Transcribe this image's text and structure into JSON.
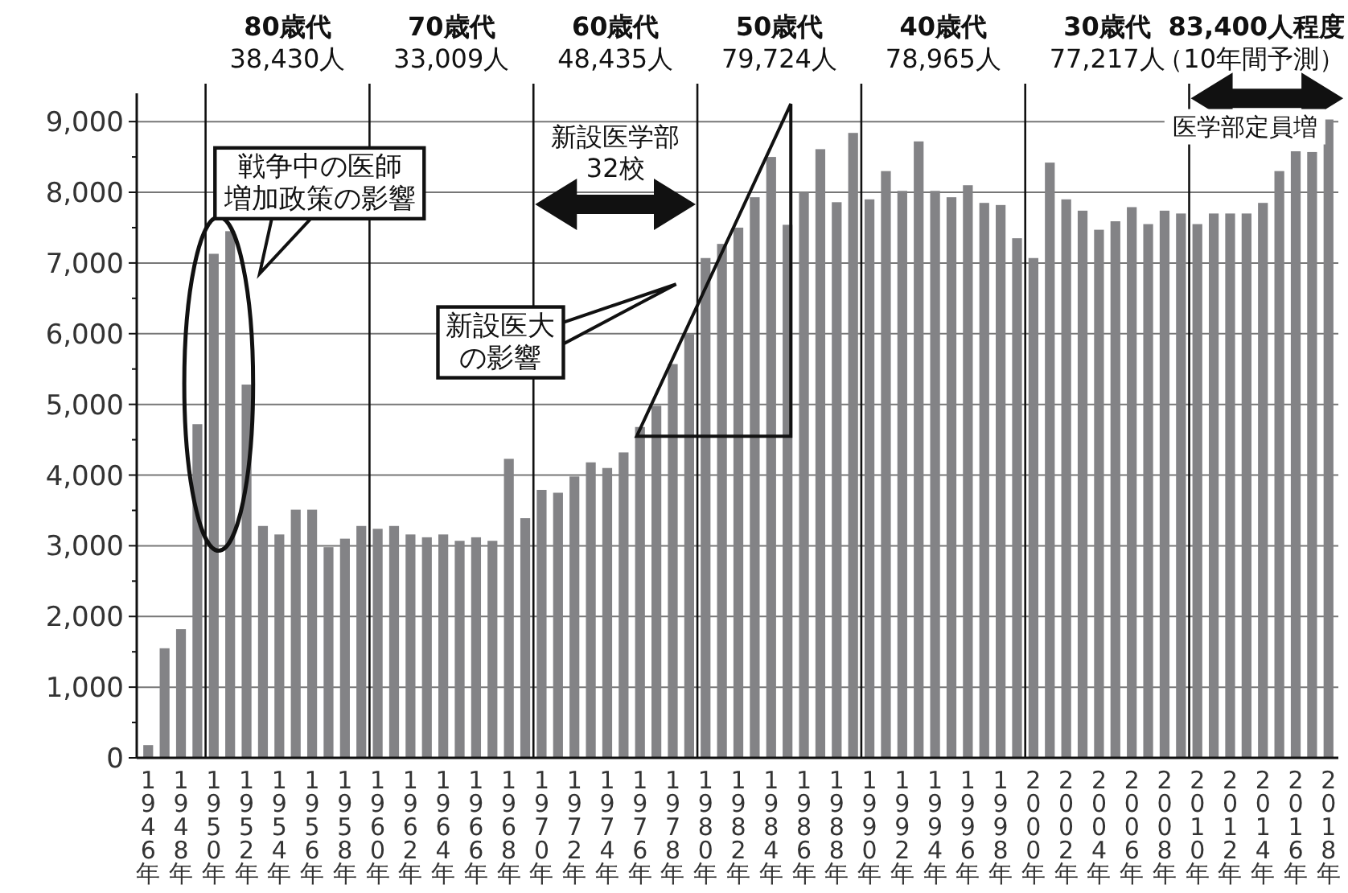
{
  "chart_data": {
    "type": "bar",
    "color": "#838386",
    "grid": "y",
    "x": [
      1946,
      1947,
      1948,
      1949,
      1950,
      1951,
      1952,
      1953,
      1954,
      1955,
      1956,
      1957,
      1958,
      1959,
      1960,
      1961,
      1962,
      1963,
      1964,
      1965,
      1966,
      1967,
      1968,
      1969,
      1970,
      1971,
      1972,
      1973,
      1974,
      1975,
      1976,
      1977,
      1978,
      1979,
      1980,
      1981,
      1982,
      1983,
      1984,
      1985,
      1986,
      1987,
      1988,
      1989,
      1990,
      1991,
      1992,
      1993,
      1994,
      1995,
      1996,
      1997,
      1998,
      1999,
      2000,
      2001,
      2002,
      2003,
      2004,
      2005,
      2006,
      2007,
      2008,
      2009,
      2010,
      2011,
      2012,
      2013,
      2014,
      2015,
      2016,
      2017,
      2018
    ],
    "values": [
      180,
      1550,
      1820,
      4720,
      7130,
      7450,
      5280,
      3280,
      3160,
      3510,
      3510,
      2980,
      3100,
      3280,
      3240,
      3280,
      3160,
      3120,
      3160,
      3070,
      3120,
      3070,
      4230,
      3390,
      3790,
      3750,
      3980,
      4180,
      4100,
      4320,
      4680,
      4980,
      5570,
      6000,
      7070,
      7270,
      7500,
      7930,
      8500,
      7540,
      8000,
      8610,
      7860,
      8840,
      7900,
      8300,
      8020,
      8720,
      8020,
      7930,
      8100,
      7850,
      7820,
      7350,
      7070,
      8420,
      7900,
      7740,
      7470,
      7590,
      7790,
      7550,
      7740,
      7700,
      7550,
      7700,
      7700,
      7700,
      7850,
      8300,
      8580,
      8570,
      9030
    ],
    "xlim": [
      1945.3,
      2018.6
    ],
    "xticks": [
      {
        "value": 1946,
        "label": "1946年"
      },
      {
        "value": 1948,
        "label": "1948年"
      },
      {
        "value": 1950,
        "label": "1950年"
      },
      {
        "value": 1952,
        "label": "1952年"
      },
      {
        "value": 1954,
        "label": "1954年"
      },
      {
        "value": 1956,
        "label": "1956年"
      },
      {
        "value": 1958,
        "label": "1958年"
      },
      {
        "value": 1960,
        "label": "1960年"
      },
      {
        "value": 1962,
        "label": "1962年"
      },
      {
        "value": 1964,
        "label": "1964年"
      },
      {
        "value": 1966,
        "label": "1966年"
      },
      {
        "value": 1968,
        "label": "1968年"
      },
      {
        "value": 1970,
        "label": "1970年"
      },
      {
        "value": 1972,
        "label": "1972年"
      },
      {
        "value": 1974,
        "label": "1974年"
      },
      {
        "value": 1976,
        "label": "1976年"
      },
      {
        "value": 1978,
        "label": "1978年"
      },
      {
        "value": 1980,
        "label": "1980年"
      },
      {
        "value": 1982,
        "label": "1982年"
      },
      {
        "value": 1984,
        "label": "1984年"
      },
      {
        "value": 1986,
        "label": "1986年"
      },
      {
        "value": 1988,
        "label": "1988年"
      },
      {
        "value": 1990,
        "label": "1990年"
      },
      {
        "value": 1992,
        "label": "1992年"
      },
      {
        "value": 1994,
        "label": "1994年"
      },
      {
        "value": 1996,
        "label": "1996年"
      },
      {
        "value": 1998,
        "label": "1998年"
      },
      {
        "value": 2000,
        "label": "2000年"
      },
      {
        "value": 2002,
        "label": "2002年"
      },
      {
        "value": 2004,
        "label": "2004年"
      },
      {
        "value": 2006,
        "label": "2006年"
      },
      {
        "value": 2008,
        "label": "2008年"
      },
      {
        "value": 2010,
        "label": "2010年"
      },
      {
        "value": 2012,
        "label": "2012年"
      },
      {
        "value": 2014,
        "label": "2014年"
      },
      {
        "value": 2016,
        "label": "2016年"
      },
      {
        "value": 2018,
        "label": "2018年"
      }
    ],
    "ylim": [
      0,
      9400
    ],
    "yticks": [
      {
        "value": 0,
        "label": "0"
      },
      {
        "value": 500,
        "label": null
      },
      {
        "value": 1000,
        "label": "1,000"
      },
      {
        "value": 1500,
        "label": null
      },
      {
        "value": 2000,
        "label": "2,000"
      },
      {
        "value": 2500,
        "label": null
      },
      {
        "value": 3000,
        "label": "3,000"
      },
      {
        "value": 3500,
        "label": null
      },
      {
        "value": 4000,
        "label": "4,000"
      },
      {
        "value": 4500,
        "label": null
      },
      {
        "value": 5000,
        "label": "5,000"
      },
      {
        "value": 5500,
        "label": null
      },
      {
        "value": 6000,
        "label": "6,000"
      },
      {
        "value": 6500,
        "label": null
      },
      {
        "value": 7000,
        "label": "7,000"
      },
      {
        "value": 7500,
        "label": null
      },
      {
        "value": 8000,
        "label": "8,000"
      },
      {
        "value": 8500,
        "label": null
      },
      {
        "value": 9000,
        "label": "9,000"
      }
    ],
    "ref_lines": [
      {
        "axis": "x",
        "value": 1949.5
      },
      {
        "axis": "x",
        "value": 1959.5
      },
      {
        "axis": "x",
        "value": 1969.5
      },
      {
        "axis": "x",
        "value": 1979.5
      },
      {
        "axis": "x",
        "value": 1989.5
      },
      {
        "axis": "x",
        "value": 1999.5
      },
      {
        "axis": "x",
        "value": 2009.5
      }
    ],
    "annotations": [
      "80歳代",
      "38,430人",
      "70歳代",
      "33,009人",
      "60歳代",
      "48,435人",
      "50歳代",
      "79,724人",
      "40歳代",
      "78,965人",
      "30歳代",
      "77,217人",
      "83,400人程度",
      "（10年間予測）",
      "戦争中の医師増加政策の影響",
      "新設医学部",
      "32校",
      "新設医大の影響",
      "医学部定員増"
    ]
  }
}
